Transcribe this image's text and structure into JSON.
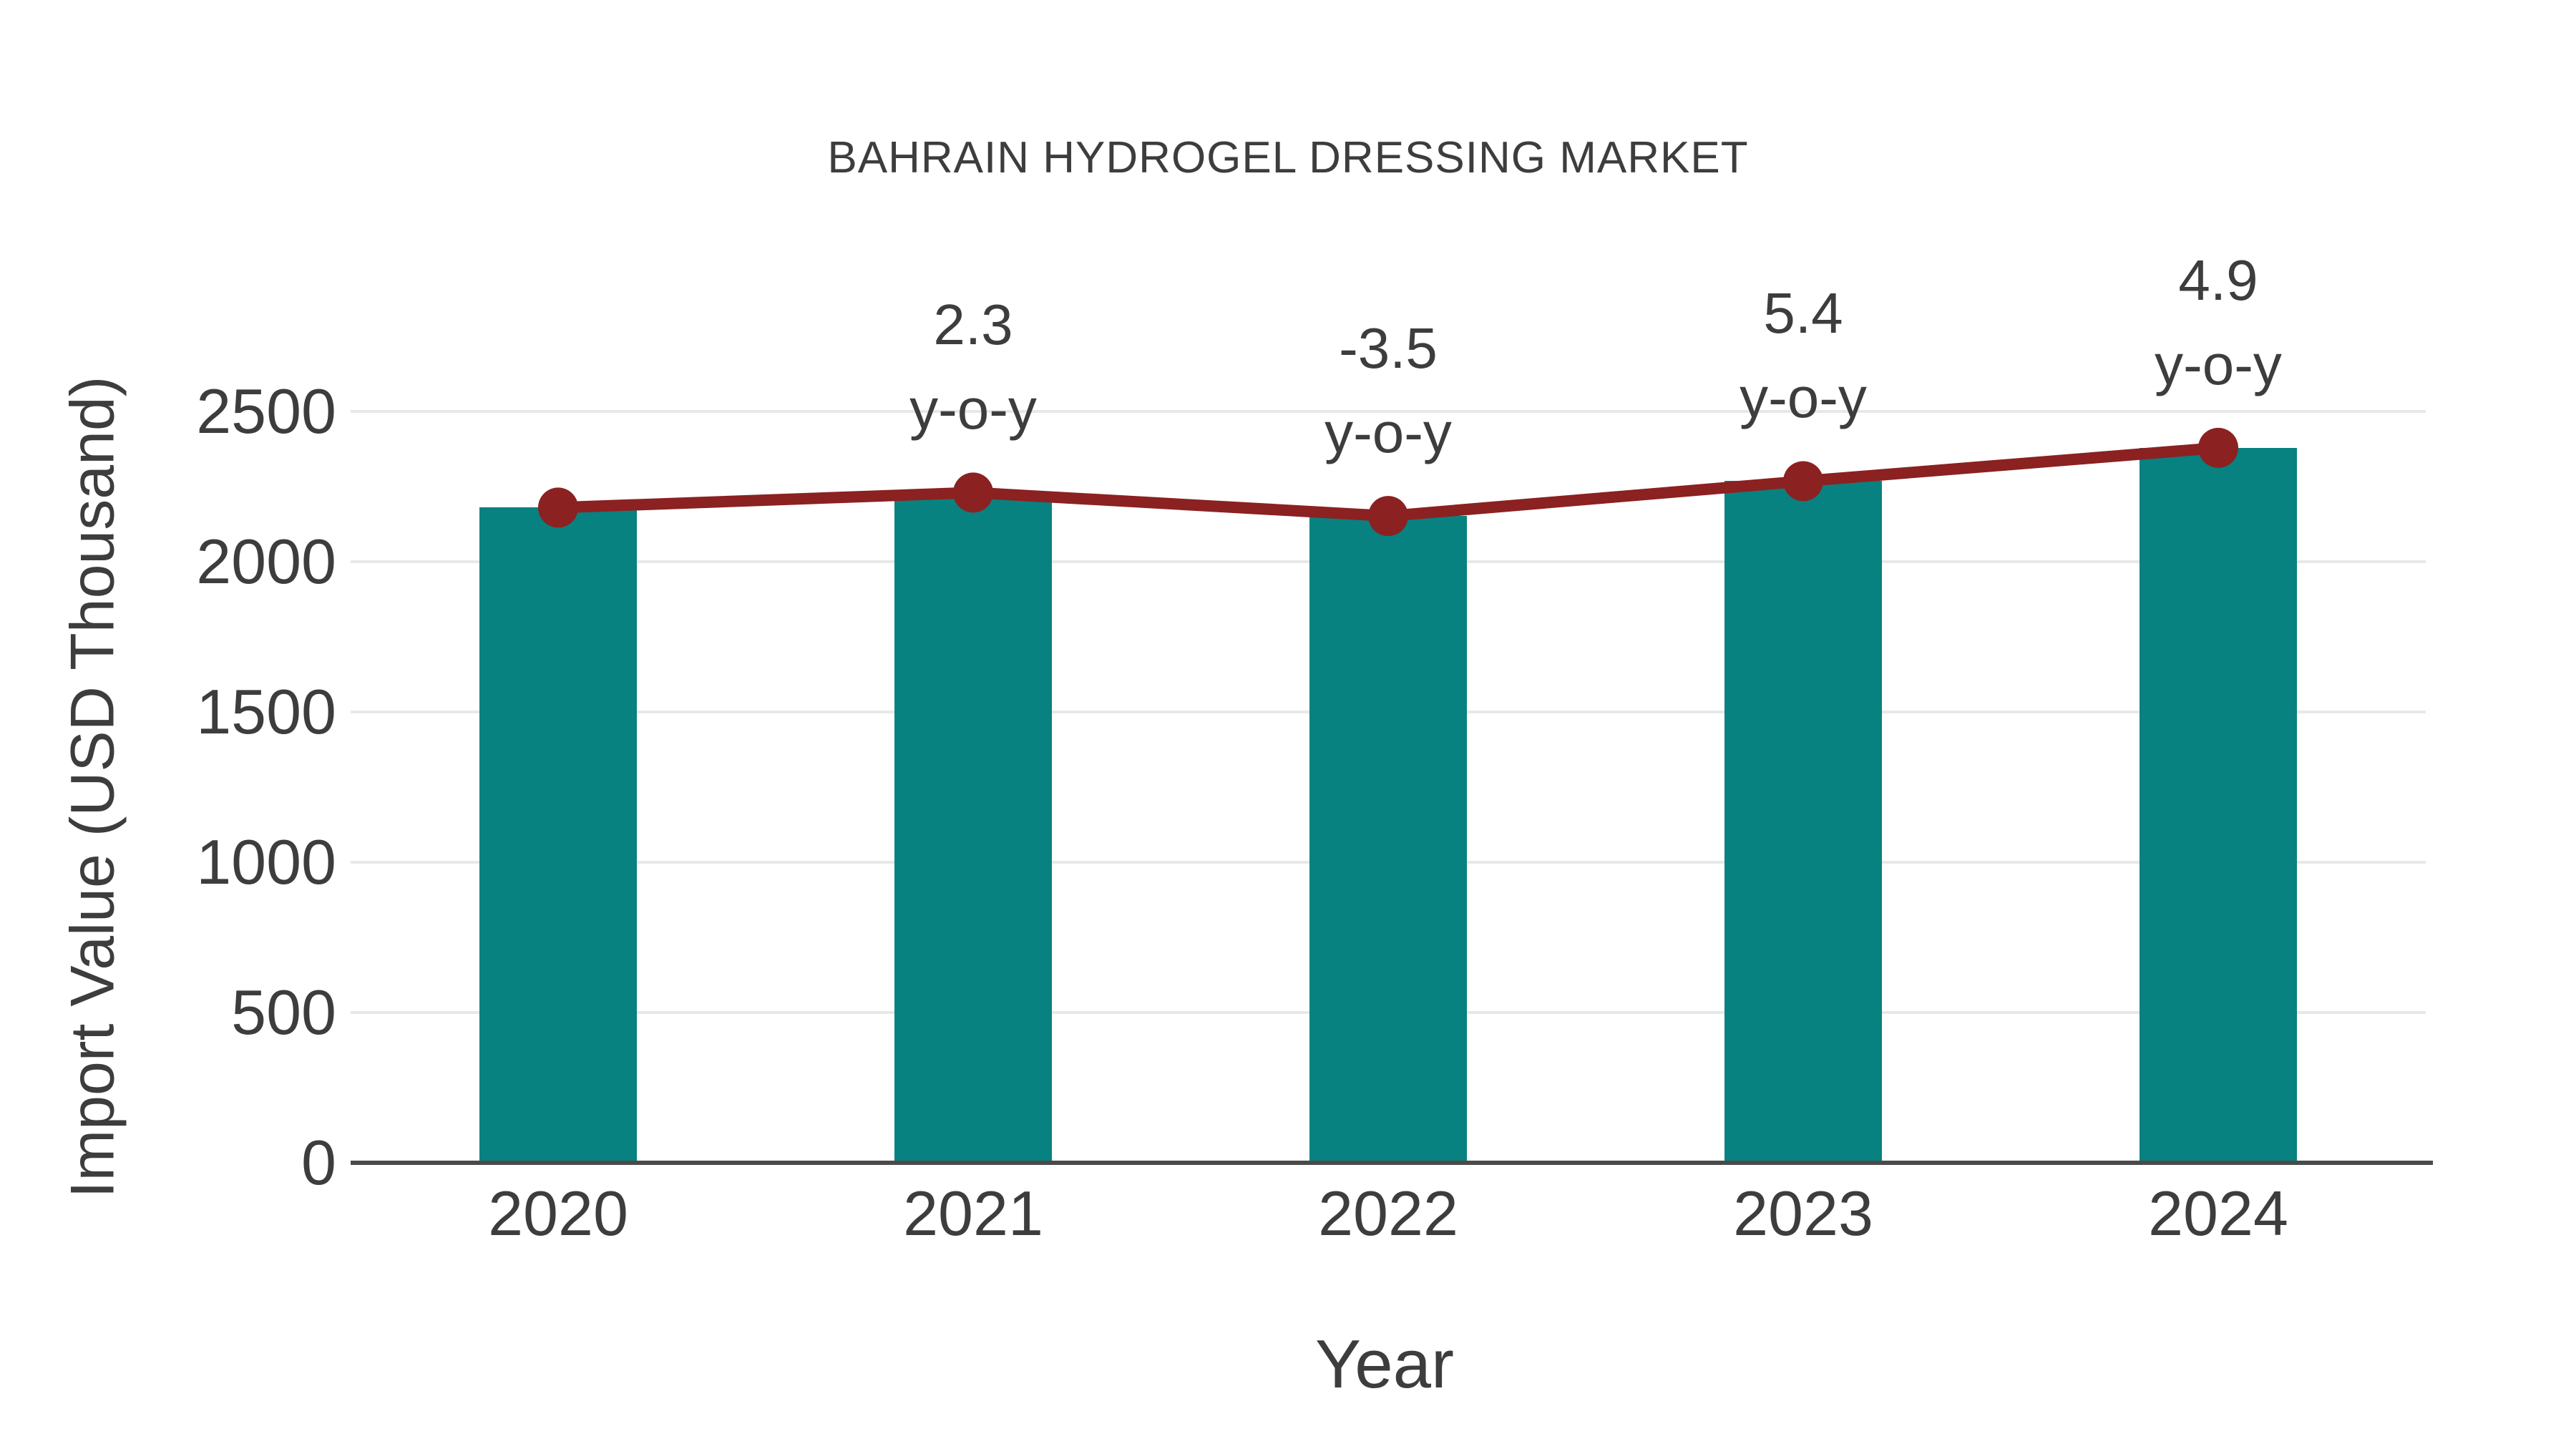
{
  "chart_data": {
    "type": "bar",
    "title": "BAHRAIN HYDROGEL DRESSING MARKET",
    "xlabel": "Year",
    "ylabel": "Import Value (USD Thousand)",
    "categories": [
      "2020",
      "2021",
      "2022",
      "2023",
      "2024"
    ],
    "series": [
      {
        "name": "Import Value (USD Thousand)",
        "type": "bar",
        "values": [
          2180,
          2230,
          2152,
          2268,
          2379
        ],
        "color": "#088280"
      },
      {
        "name": "y-o-y growth line",
        "type": "line",
        "values": [
          2180,
          2230,
          2152,
          2268,
          2379
        ],
        "color": "#8B2121"
      }
    ],
    "annotations": [
      {
        "category": "2021",
        "lines": [
          "2.3",
          "y-o-y"
        ]
      },
      {
        "category": "2022",
        "lines": [
          "-3.5",
          "y-o-y"
        ]
      },
      {
        "category": "2023",
        "lines": [
          "5.4",
          "y-o-y"
        ]
      },
      {
        "category": "2024",
        "lines": [
          "4.9",
          "y-o-y"
        ]
      }
    ],
    "ylim": [
      0,
      2500
    ],
    "yticks": [
      0,
      500,
      1000,
      1500,
      2000,
      2500
    ],
    "grid": true,
    "legend": "none",
    "colors": {
      "bar": "#088280",
      "line": "#8B2121",
      "text": "#3d3d3d",
      "gridline": "#e8e8e8",
      "axis": "#4a4a4a",
      "background": "#ffffff"
    }
  }
}
